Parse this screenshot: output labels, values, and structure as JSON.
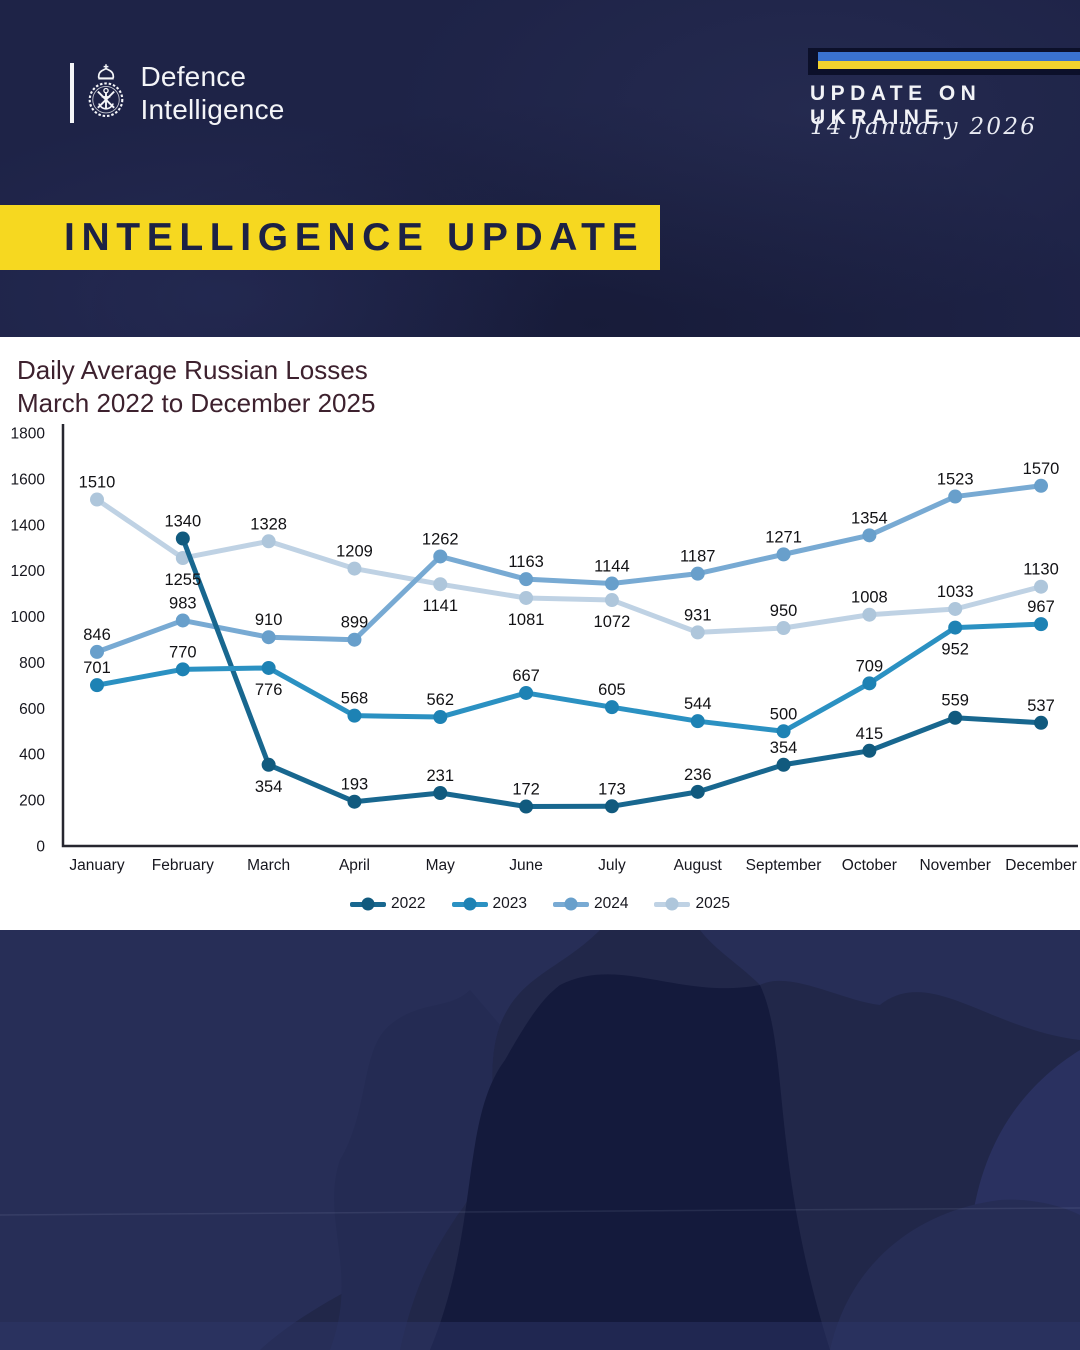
{
  "header": {
    "logo_line1": "Defence",
    "logo_line2": "Intelligence",
    "update_label": "UPDATE ON UKRAINE",
    "date": "14 January 2026",
    "flag_colors": {
      "blue": "#3a72cf",
      "yellow": "#f2d22e"
    }
  },
  "banner": {
    "title": "INTELLIGENCE UPDATE",
    "background": "#f6d820",
    "text_color": "#1c2145"
  },
  "chart": {
    "title_line1": "Daily Average Russian Losses",
    "title_line2": "March 2022 to December 2025"
  },
  "chart_data": {
    "type": "line",
    "title": "Daily Average Russian Losses March 2022 to December 2025",
    "categories": [
      "January",
      "February",
      "March",
      "April",
      "May",
      "June",
      "July",
      "August",
      "September",
      "October",
      "November",
      "December"
    ],
    "series": [
      {
        "name": "2022",
        "color": "#18678f",
        "marker_color": "#115a7e",
        "values": [
          null,
          1340,
          354,
          193,
          231,
          172,
          173,
          236,
          354,
          415,
          559,
          537
        ],
        "label_pos": [
          "a",
          "a",
          "b",
          "a",
          "a",
          "a",
          "a",
          "a",
          "a",
          "a",
          "a",
          "a"
        ]
      },
      {
        "name": "2023",
        "color": "#2b91c2",
        "marker_color": "#1d82b4",
        "values": [
          701,
          770,
          776,
          568,
          562,
          667,
          605,
          544,
          500,
          709,
          952,
          967
        ],
        "label_pos": [
          "a",
          "a",
          "b",
          "a",
          "a",
          "a",
          "a",
          "a",
          "a",
          "a",
          "b",
          "a"
        ]
      },
      {
        "name": "2024",
        "color": "#78aad3",
        "marker_color": "#689fcb",
        "values": [
          846,
          983,
          910,
          899,
          1262,
          1163,
          1144,
          1187,
          1271,
          1354,
          1523,
          1570
        ],
        "label_pos": [
          "a",
          "a",
          "a",
          "a",
          "a",
          "a",
          "a",
          "a",
          "a",
          "a",
          "a",
          "a"
        ]
      },
      {
        "name": "2025",
        "color": "#bfd2e4",
        "marker_color": "#aec6db",
        "values": [
          1510,
          1255,
          1328,
          1209,
          1141,
          1081,
          1072,
          931,
          950,
          1008,
          1033,
          1130
        ],
        "label_pos": [
          "a",
          "b",
          "a",
          "a",
          "b",
          "b",
          "b",
          "a",
          "a",
          "a",
          "a",
          "a"
        ]
      }
    ],
    "ylim": [
      0,
      1800
    ],
    "ytick_step": 200,
    "grid": false,
    "legend_position": "bottom",
    "draw_order": [
      "2025",
      "2024",
      "2022",
      "2023"
    ],
    "axis_color": "#26262f"
  }
}
